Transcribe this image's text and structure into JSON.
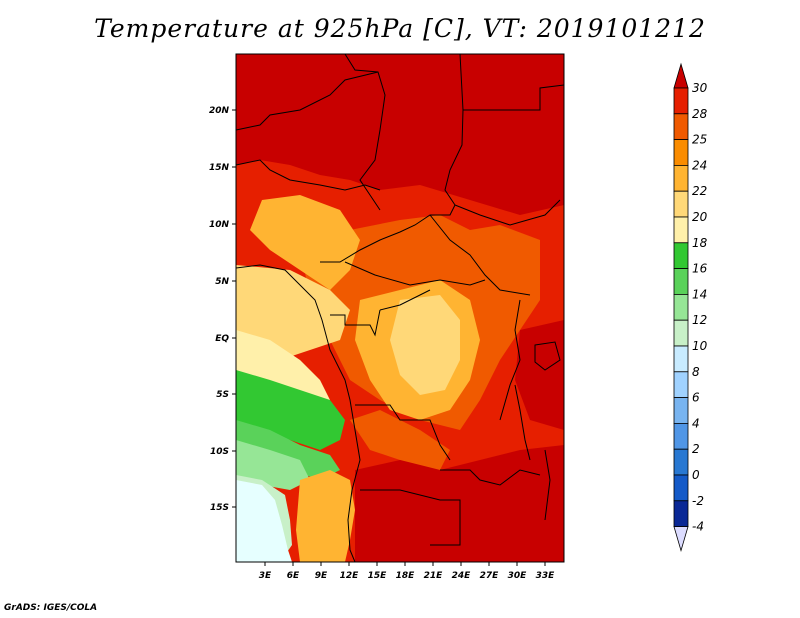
{
  "title": "Temperature at 925hPa [C], VT: 2019101212",
  "credit": "GrADS: IGES/COLA",
  "map": {
    "lat_ticks": [
      "20N",
      "15N",
      "10N",
      "5N",
      "EQ",
      "5S",
      "10S",
      "15S"
    ],
    "lon_ticks": [
      "3E",
      "6E",
      "9E",
      "12E",
      "15E",
      "18E",
      "21E",
      "24E",
      "27E",
      "30E",
      "33E"
    ]
  },
  "colorbar": {
    "labels": [
      "30",
      "28",
      "25",
      "24",
      "22",
      "20",
      "18",
      "16",
      "14",
      "12",
      "10",
      "8",
      "6",
      "4",
      "2",
      "0",
      "-2",
      "-4"
    ],
    "colors": [
      "#c80000",
      "#e61f00",
      "#f05a00",
      "#fa8c00",
      "#ffb432",
      "#ffd878",
      "#fff0aa",
      "#32c832",
      "#5ad25a",
      "#96e696",
      "#c8f0c8",
      "#c8ebff",
      "#a0d2ff",
      "#78b4f0",
      "#5096e6",
      "#2878d2",
      "#145ac8",
      "#0a2896",
      "#000064"
    ],
    "low_arrow_color": "#dcdcff",
    "high_arrow_color": "#c80000"
  },
  "colors": {
    "hot": "#c80000",
    "very_warm": "#e61f00",
    "warm": "#f05a00",
    "orange": "#fa8c00",
    "light_orange": "#ffb432",
    "tan": "#ffd878",
    "pale": "#fff0aa",
    "green_dark": "#32c832",
    "green": "#5ad25a",
    "green_light": "#96e696",
    "green_pale": "#c8f0c8",
    "cyan_pale": "#e6ffff"
  }
}
